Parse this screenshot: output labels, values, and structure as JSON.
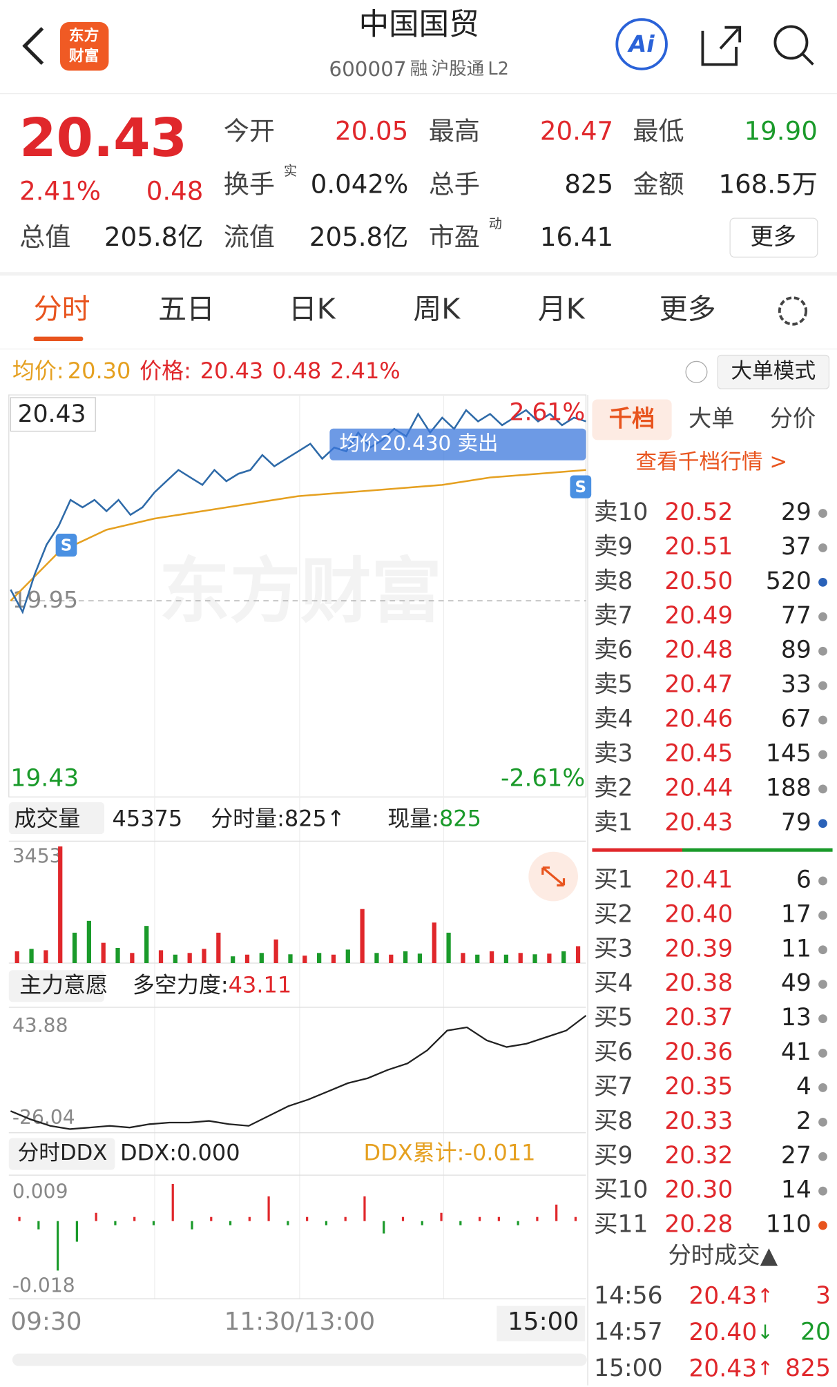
{
  "header": {
    "logo": [
      "东方",
      "财富"
    ],
    "title": "中国国贸",
    "code": "600007",
    "tags": [
      "融",
      "沪股通",
      "L2"
    ],
    "ai": "Ai"
  },
  "quote": {
    "price": "20.43",
    "pct": "2.41%",
    "change": "0.48",
    "fields": [
      {
        "label": "今开",
        "value": "20.05",
        "color": "#e0272b"
      },
      {
        "label": "最高",
        "value": "20.47",
        "color": "#e0272b"
      },
      {
        "label": "最低",
        "value": "19.90",
        "color": "#1a9a2a"
      },
      {
        "label": "换手",
        "sup": "实",
        "value": "0.042%",
        "color": "#222"
      },
      {
        "label": "总手",
        "value": "825",
        "color": "#222"
      },
      {
        "label": "金额",
        "value": "168.5万",
        "color": "#222"
      },
      {
        "label": "流值",
        "value": "205.8亿",
        "color": "#222"
      },
      {
        "label": "市盈",
        "sup": "动",
        "value": "16.41",
        "color": "#222"
      }
    ],
    "total_label": "总值",
    "total_value": "205.8亿",
    "more": "更多"
  },
  "tabs": [
    "分时",
    "五日",
    "日K",
    "周K",
    "月K",
    "更多"
  ],
  "info_bar": {
    "avg_label": "均价:",
    "avg": "20.30",
    "price_label": "价格:",
    "price": "20.43",
    "change": "0.48",
    "pct": "2.41%",
    "mode": "大单模式"
  },
  "price_chart": {
    "current": "20.43",
    "pct_top": "2.61%",
    "pct_bottom": "-2.61%",
    "prev_close": 19.95,
    "watermark": "东方财富",
    "tooltip": "均价20.430  卖出",
    "marker": "S",
    "ylim": [
      19.43,
      20.47
    ],
    "price": [
      19.98,
      19.92,
      20.02,
      20.1,
      20.15,
      20.22,
      20.2,
      20.22,
      20.19,
      20.22,
      20.18,
      20.2,
      20.24,
      20.27,
      20.3,
      20.28,
      20.26,
      20.3,
      20.27,
      20.29,
      20.3,
      20.34,
      20.31,
      20.33,
      20.35,
      20.37,
      20.33,
      20.36,
      20.35,
      20.4,
      20.36,
      20.38,
      20.41,
      20.39,
      20.45,
      20.4,
      20.44,
      20.41,
      20.46,
      20.43,
      20.45,
      20.42,
      20.44,
      20.46,
      20.43,
      20.45,
      20.42,
      20.44,
      20.43
    ],
    "avg": [
      19.95,
      20.08,
      20.14,
      20.17,
      20.19,
      20.21,
      20.23,
      20.24,
      20.25,
      20.26,
      20.28,
      20.29,
      20.3
    ]
  },
  "volume": {
    "label": "成交量",
    "total": "45375",
    "minute": "分时量:825↑",
    "now_label": "现量:",
    "now": "825",
    "ylim": [
      0,
      3453
    ],
    "values": [
      350,
      420,
      380,
      3453,
      900,
      1250,
      600,
      450,
      300,
      1100,
      380,
      250,
      300,
      420,
      900,
      200,
      250,
      300,
      700,
      260,
      220,
      300,
      250,
      400,
      1600,
      300,
      250,
      350,
      280,
      1200,
      900,
      300,
      250,
      350,
      250,
      300,
      260,
      280,
      350,
      500
    ],
    "colors": [
      "#e0272b",
      "#1a9a2a",
      "#e0272b",
      "#e0272b",
      "#1a9a2a",
      "#1a9a2a",
      "#e0272b",
      "#1a9a2a",
      "#e0272b",
      "#1a9a2a",
      "#e0272b",
      "#1a9a2a",
      "#e0272b",
      "#e0272b",
      "#e0272b",
      "#1a9a2a",
      "#e0272b",
      "#1a9a2a",
      "#e0272b",
      "#1a9a2a",
      "#e0272b",
      "#1a9a2a",
      "#e0272b",
      "#1a9a2a",
      "#e0272b",
      "#1a9a2a",
      "#e0272b",
      "#1a9a2a",
      "#1a9a2a",
      "#e0272b",
      "#1a9a2a",
      "#e0272b",
      "#1a9a2a",
      "#e0272b",
      "#1a9a2a",
      "#e0272b",
      "#1a9a2a",
      "#e0272b",
      "#1a9a2a",
      "#e0272b"
    ]
  },
  "force": {
    "label": "主力意愿",
    "value_label": "多空力度:",
    "value": "43.11",
    "ylim": [
      -26.04,
      43.88
    ],
    "values": [
      -15,
      -20,
      -24,
      -26,
      -25,
      -24,
      -25,
      -23,
      -22,
      -22,
      -21,
      -23,
      -24,
      -18,
      -12,
      -8,
      -3,
      2,
      5,
      10,
      14,
      22,
      34,
      36,
      28,
      24,
      26,
      30,
      34,
      43.11
    ]
  },
  "ddx": {
    "label": "分时DDX",
    "ddx": "DDX:0.000",
    "cum": "DDX累计:-0.011",
    "ylim": [
      -0.018,
      0.009
    ],
    "values": [
      0.001,
      -0.002,
      -0.012,
      -0.005,
      0.002,
      -0.001,
      0.001,
      -0.001,
      0.009,
      -0.002,
      0.001,
      -0.001,
      0.001,
      0.006,
      -0.001,
      0.001,
      -0.001,
      0.001,
      0.006,
      -0.003,
      0.001,
      -0.001,
      0.002,
      -0.001,
      0.001,
      0.001,
      -0.001,
      0.001,
      0.004,
      0.001
    ]
  },
  "times": [
    "09:30",
    "11:30/13:00",
    "15:00"
  ],
  "book": {
    "tabs": [
      "千档",
      "大单",
      "分价"
    ],
    "link": "查看千档行情 >",
    "asks": [
      {
        "label": "卖10",
        "price": "20.52",
        "vol": "29",
        "dot": "#999"
      },
      {
        "label": "卖9",
        "price": "20.51",
        "vol": "37",
        "dot": "#999"
      },
      {
        "label": "卖8",
        "price": "20.50",
        "vol": "520",
        "dot": "#2a62b8"
      },
      {
        "label": "卖7",
        "price": "20.49",
        "vol": "77",
        "dot": "#999"
      },
      {
        "label": "卖6",
        "price": "20.48",
        "vol": "89",
        "dot": "#999"
      },
      {
        "label": "卖5",
        "price": "20.47",
        "vol": "33",
        "dot": "#999"
      },
      {
        "label": "卖4",
        "price": "20.46",
        "vol": "67",
        "dot": "#999"
      },
      {
        "label": "卖3",
        "price": "20.45",
        "vol": "145",
        "dot": "#999"
      },
      {
        "label": "卖2",
        "price": "20.44",
        "vol": "188",
        "dot": "#999"
      },
      {
        "label": "卖1",
        "price": "20.43",
        "vol": "79",
        "dot": "#2a62b8"
      }
    ],
    "bids": [
      {
        "label": "买1",
        "price": "20.41",
        "vol": "6"
      },
      {
        "label": "买2",
        "price": "20.40",
        "vol": "17"
      },
      {
        "label": "买3",
        "price": "20.39",
        "vol": "11"
      },
      {
        "label": "买4",
        "price": "20.38",
        "vol": "49"
      },
      {
        "label": "买5",
        "price": "20.37",
        "vol": "13"
      },
      {
        "label": "买6",
        "price": "20.36",
        "vol": "41"
      },
      {
        "label": "买7",
        "price": "20.35",
        "vol": "4"
      },
      {
        "label": "买8",
        "price": "20.33",
        "vol": "2"
      },
      {
        "label": "买9",
        "price": "20.32",
        "vol": "27"
      },
      {
        "label": "买10",
        "price": "20.30",
        "vol": "14"
      },
      {
        "label": "买11",
        "price": "20.28",
        "vol": "110",
        "dot": "#e8541e"
      }
    ]
  },
  "trades": {
    "title": "分时成交▲",
    "rows": [
      {
        "time": "14:56",
        "price": "20.43",
        "dir": "↑",
        "vol": "3",
        "color": "#e0272b"
      },
      {
        "time": "14:57",
        "price": "20.40",
        "dir": "↓",
        "vol": "20",
        "color": "#1a9a2a"
      },
      {
        "time": "15:00",
        "price": "20.43",
        "dir": "↑",
        "vol": "825",
        "color": "#e0272b"
      }
    ]
  }
}
